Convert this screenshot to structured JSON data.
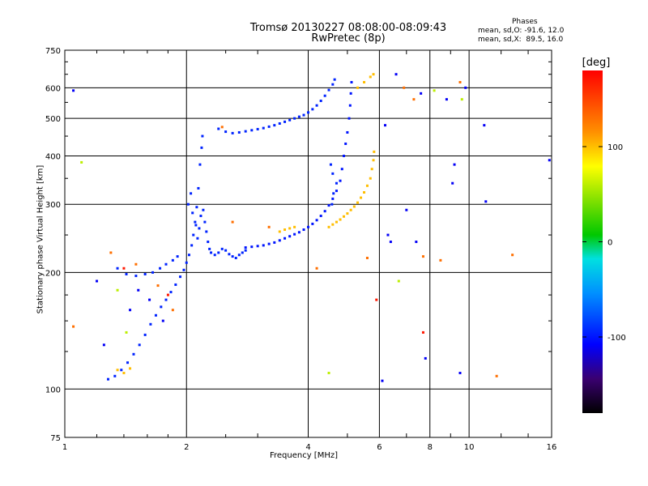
{
  "header": {
    "title_line1": "Tromsø 20130227 08:08:00-08:09:43",
    "title_line2": "RwPretec (8p)",
    "stats_title": "Phases",
    "stats_line1": "mean, sd,O: -91.6, 12.0",
    "stats_line2": "mean, sd,X:  89.5, 16.0"
  },
  "colorbar": {
    "label": "[deg]",
    "ticks": [
      "100",
      "0",
      "-100"
    ],
    "tick_values": [
      100,
      0,
      -100
    ],
    "range": [
      -180,
      180
    ]
  },
  "chart_data": {
    "type": "scatter",
    "title": "Tromsø 20130227 08:08:00-08:09:43",
    "subtitle": "RwPretec (8p)",
    "xlabel": "Frequency [MHz]",
    "ylabel": "Stationary phase Virtual Height [km]",
    "xscale": "log",
    "yscale": "log",
    "xlim": [
      1,
      16
    ],
    "ylim": [
      75,
      750
    ],
    "xticks": [
      1,
      2,
      4,
      6,
      8,
      10,
      16
    ],
    "xtick_labels": [
      "1",
      "2",
      "4",
      "6",
      "8",
      "10",
      "16"
    ],
    "yticks": [
      75,
      100,
      200,
      300,
      400,
      500,
      600,
      750
    ],
    "ytick_labels": [
      "75",
      "100",
      "200",
      "300",
      "400",
      "500",
      "600",
      "750"
    ],
    "grid": true,
    "color_by": "phase [deg]",
    "series": [
      {
        "phase": -95,
        "points": [
          [
            1.28,
            106
          ],
          [
            1.33,
            108
          ],
          [
            1.38,
            112
          ],
          [
            1.43,
            117
          ],
          [
            1.48,
            123
          ],
          [
            1.53,
            130
          ],
          [
            1.58,
            138
          ],
          [
            1.63,
            147
          ],
          [
            1.68,
            155
          ],
          [
            1.73,
            163
          ],
          [
            1.78,
            170
          ],
          [
            1.83,
            178
          ],
          [
            1.88,
            186
          ],
          [
            1.93,
            195
          ],
          [
            1.97,
            203
          ],
          [
            2.0,
            212
          ],
          [
            2.03,
            222
          ],
          [
            2.06,
            235
          ],
          [
            2.08,
            250
          ],
          [
            2.1,
            270
          ],
          [
            2.12,
            295
          ],
          [
            2.14,
            330
          ],
          [
            2.16,
            380
          ],
          [
            2.18,
            420
          ],
          [
            2.19,
            450
          ],
          [
            2.02,
            300
          ],
          [
            2.05,
            320
          ],
          [
            2.07,
            285
          ],
          [
            2.11,
            265
          ],
          [
            2.13,
            245
          ],
          [
            2.15,
            260
          ],
          [
            2.17,
            280
          ],
          [
            2.2,
            290
          ],
          [
            2.22,
            270
          ],
          [
            2.24,
            255
          ],
          [
            2.26,
            240
          ],
          [
            2.28,
            230
          ],
          [
            2.3,
            225
          ],
          [
            2.35,
            222
          ],
          [
            2.4,
            225
          ],
          [
            2.45,
            230
          ],
          [
            2.5,
            228
          ],
          [
            2.55,
            223
          ],
          [
            2.6,
            220
          ],
          [
            2.65,
            218
          ],
          [
            2.7,
            222
          ],
          [
            2.75,
            225
          ],
          [
            2.8,
            228
          ],
          [
            1.35,
            205
          ],
          [
            1.42,
            198
          ],
          [
            1.5,
            196
          ],
          [
            1.58,
            198
          ],
          [
            1.65,
            200
          ],
          [
            1.72,
            205
          ],
          [
            1.78,
            210
          ],
          [
            1.85,
            215
          ],
          [
            1.9,
            220
          ]
        ]
      },
      {
        "phase": -100,
        "points": [
          [
            2.8,
            232
          ],
          [
            2.9,
            233
          ],
          [
            3.0,
            234
          ],
          [
            3.1,
            235
          ],
          [
            3.2,
            237
          ],
          [
            3.3,
            239
          ],
          [
            3.4,
            242
          ],
          [
            3.5,
            245
          ],
          [
            3.6,
            248
          ],
          [
            3.7,
            251
          ],
          [
            3.8,
            254
          ],
          [
            3.9,
            258
          ],
          [
            4.0,
            262
          ],
          [
            4.1,
            267
          ],
          [
            4.2,
            273
          ],
          [
            4.3,
            280
          ],
          [
            4.4,
            288
          ],
          [
            4.5,
            298
          ],
          [
            4.6,
            310
          ],
          [
            4.7,
            325
          ],
          [
            4.8,
            345
          ],
          [
            4.85,
            370
          ],
          [
            4.9,
            400
          ],
          [
            4.95,
            430
          ],
          [
            5.0,
            460
          ],
          [
            5.05,
            500
          ],
          [
            5.08,
            540
          ],
          [
            5.1,
            580
          ],
          [
            5.12,
            620
          ]
        ]
      },
      {
        "phase": -95,
        "points": [
          [
            2.4,
            470
          ],
          [
            2.5,
            462
          ],
          [
            2.6,
            458
          ],
          [
            2.7,
            460
          ],
          [
            2.8,
            463
          ],
          [
            2.9,
            466
          ],
          [
            3.0,
            469
          ],
          [
            3.1,
            472
          ],
          [
            3.2,
            476
          ],
          [
            3.3,
            480
          ],
          [
            3.4,
            485
          ],
          [
            3.5,
            490
          ],
          [
            3.6,
            495
          ],
          [
            3.7,
            500
          ],
          [
            3.8,
            505
          ],
          [
            3.9,
            510
          ],
          [
            4.0,
            518
          ],
          [
            4.1,
            528
          ],
          [
            4.2,
            540
          ],
          [
            4.3,
            555
          ],
          [
            4.4,
            572
          ],
          [
            4.5,
            592
          ],
          [
            4.6,
            612
          ],
          [
            4.65,
            630
          ],
          [
            4.55,
            380
          ],
          [
            4.6,
            360
          ],
          [
            4.7,
            340
          ],
          [
            4.62,
            320
          ],
          [
            4.58,
            300
          ]
        ]
      },
      {
        "phase": 100,
        "points": [
          [
            4.5,
            262
          ],
          [
            4.6,
            266
          ],
          [
            4.7,
            270
          ],
          [
            4.8,
            274
          ],
          [
            4.9,
            279
          ],
          [
            5.0,
            284
          ],
          [
            5.1,
            290
          ],
          [
            5.2,
            296
          ],
          [
            5.3,
            303
          ],
          [
            5.4,
            312
          ],
          [
            5.5,
            322
          ],
          [
            5.6,
            335
          ],
          [
            5.7,
            350
          ],
          [
            5.75,
            370
          ],
          [
            5.8,
            390
          ],
          [
            5.82,
            410
          ],
          [
            3.4,
            255
          ],
          [
            3.5,
            258
          ],
          [
            3.6,
            260
          ],
          [
            3.7,
            262
          ],
          [
            5.3,
            600
          ],
          [
            5.5,
            620
          ],
          [
            5.7,
            640
          ],
          [
            5.8,
            650
          ],
          [
            1.35,
            112
          ],
          [
            1.4,
            110
          ],
          [
            1.45,
            113
          ]
        ]
      },
      {
        "phase": -110,
        "points": [
          [
            1.05,
            590
          ],
          [
            1.25,
            130
          ],
          [
            1.45,
            160
          ],
          [
            1.52,
            180
          ],
          [
            1.62,
            170
          ],
          [
            1.75,
            150
          ],
          [
            6.2,
            480
          ],
          [
            6.4,
            240
          ],
          [
            6.6,
            650
          ],
          [
            7.0,
            290
          ],
          [
            7.4,
            240
          ],
          [
            7.6,
            580
          ],
          [
            7.8,
            120
          ],
          [
            8.8,
            560
          ],
          [
            9.1,
            340
          ],
          [
            9.5,
            110
          ],
          [
            9.8,
            600
          ],
          [
            9.2,
            380
          ],
          [
            10.9,
            480
          ],
          [
            11.0,
            305
          ],
          [
            15.8,
            390
          ],
          [
            6.1,
            105
          ],
          [
            6.3,
            250
          ],
          [
            1.2,
            190
          ]
        ]
      },
      {
        "phase": 130,
        "points": [
          [
            1.3,
            225
          ],
          [
            1.5,
            210
          ],
          [
            1.7,
            185
          ],
          [
            2.6,
            270
          ],
          [
            3.2,
            262
          ],
          [
            4.2,
            205
          ],
          [
            5.6,
            218
          ],
          [
            6.9,
            600
          ],
          [
            7.3,
            560
          ],
          [
            7.7,
            220
          ],
          [
            8.5,
            215
          ],
          [
            9.5,
            620
          ],
          [
            12.8,
            222
          ],
          [
            11.7,
            108
          ],
          [
            1.05,
            145
          ],
          [
            1.85,
            160
          ],
          [
            2.45,
            475
          ]
        ]
      },
      {
        "phase": 60,
        "points": [
          [
            1.1,
            385
          ],
          [
            1.35,
            180
          ],
          [
            1.42,
            140
          ],
          [
            6.7,
            190
          ],
          [
            8.2,
            590
          ],
          [
            9.6,
            560
          ],
          [
            4.5,
            110
          ]
        ]
      },
      {
        "phase": 170,
        "points": [
          [
            1.4,
            205
          ],
          [
            1.8,
            175
          ],
          [
            5.9,
            170
          ],
          [
            7.7,
            140
          ]
        ]
      }
    ]
  }
}
